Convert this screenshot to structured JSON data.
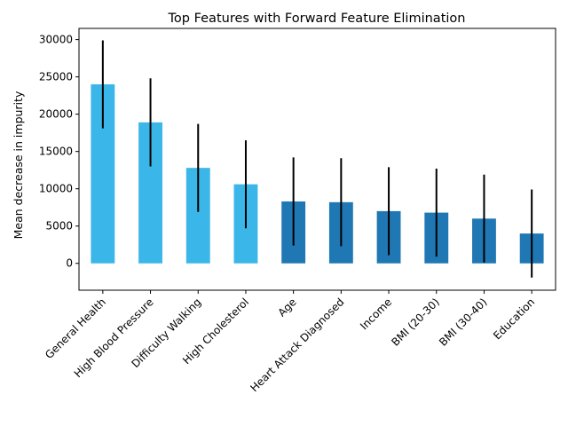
{
  "chart_data": {
    "type": "bar",
    "title": "Top Features with Forward Feature Elimination",
    "xlabel": "",
    "ylabel": "Mean decrease in impurity",
    "categories": [
      "General Health",
      "High Blood Pressure",
      "Difficulty Walking",
      "High Cholesterol",
      "Age",
      "Heart Attack Diagnosed",
      "Income",
      "BMI (20-30)",
      "BMI (30-40)",
      "Education"
    ],
    "values": [
      24000,
      18900,
      12800,
      10600,
      8300,
      8200,
      7000,
      6800,
      6000,
      4000
    ],
    "errors": [
      5900,
      5900,
      5900,
      5900,
      5900,
      5900,
      5900,
      5900,
      5900,
      5900
    ],
    "bar_colors": [
      "#3bb6e8",
      "#3bb6e8",
      "#3bb6e8",
      "#3bb6e8",
      "#1f77b4",
      "#1f77b4",
      "#1f77b4",
      "#1f77b4",
      "#1f77b4",
      "#1f77b4"
    ],
    "error_color": "#000000",
    "ylim": [
      -3600,
      31500
    ],
    "yticks": [
      0,
      5000,
      10000,
      15000,
      20000,
      25000,
      30000
    ],
    "ytick_labels": [
      "0",
      "5000",
      "10000",
      "15000",
      "20000",
      "25000",
      "30000"
    ],
    "grid": false,
    "legend": "none"
  }
}
